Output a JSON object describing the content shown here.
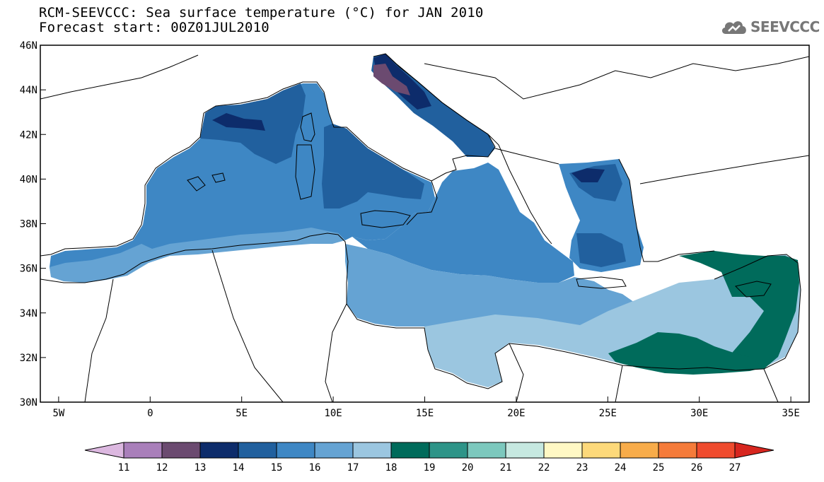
{
  "title": {
    "line1": "RCM-SEEVCCC: Sea surface temperature (°C) for JAN 2010",
    "line2": "Forecast start: 00Z01JUL2010"
  },
  "logo": {
    "text": "SEEVCCC",
    "icon": "cloud-icon",
    "color": "#777777"
  },
  "map": {
    "lon_range": [
      -6,
      36
    ],
    "lat_range": [
      30,
      46
    ],
    "lat_ticks": [
      "46N",
      "44N",
      "42N",
      "40N",
      "38N",
      "36N",
      "34N",
      "32N",
      "30N"
    ],
    "lon_ticks": [
      "5W",
      "0",
      "5E",
      "10E",
      "15E",
      "20E",
      "25E",
      "30E",
      "35E"
    ]
  },
  "colorbar": {
    "labels": [
      "11",
      "12",
      "13",
      "14",
      "15",
      "16",
      "17",
      "18",
      "19",
      "20",
      "21",
      "22",
      "23",
      "24",
      "25",
      "26",
      "27"
    ],
    "colors": [
      "#dcb8e0",
      "#a97fba",
      "#6b4a70",
      "#0d2c6b",
      "#21609e",
      "#3e87c4",
      "#65a3d3",
      "#9bc6e0",
      "#006b5b",
      "#2e9488",
      "#7cc8bd",
      "#c6e8e0",
      "#fff8c4",
      "#fdd97a",
      "#f8ac4a",
      "#f57b3a",
      "#ef4b2e",
      "#d7261f"
    ]
  }
}
